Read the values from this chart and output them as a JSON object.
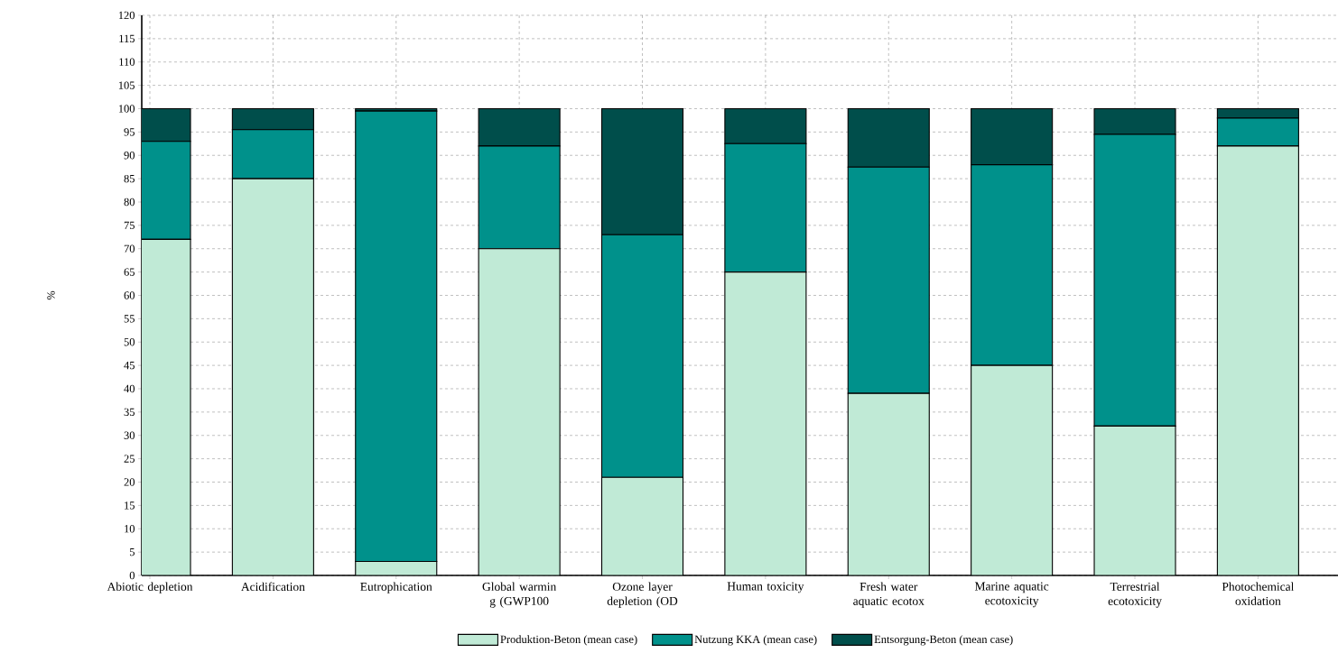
{
  "chart_data": {
    "type": "bar",
    "stacked": true,
    "ylabel": "%",
    "categories": [
      "Abiotic depletion",
      "Acidification",
      "Eutrophication",
      "Global warmin g (GWP100",
      "Ozone layer depletion (OD",
      "Human toxicity",
      "Fresh water aquatic ecotox",
      "Marine aquatic ecotoxicity",
      "Terrestrial ecotoxicity",
      "Photochemical oxidation"
    ],
    "series": [
      {
        "name": "Produktion-Beton (mean case)",
        "color": "#c0ead6",
        "values": [
          72,
          85,
          3,
          70,
          21,
          65,
          39,
          45,
          32,
          92
        ]
      },
      {
        "name": "Nutzung KKA (mean case)",
        "color": "#00918b",
        "values": [
          21,
          10.5,
          96.5,
          22,
          52,
          27.5,
          48.5,
          43,
          62.5,
          6
        ]
      },
      {
        "name": "Entsorgung-Beton (mean case)",
        "color": "#004e4b",
        "values": [
          7,
          4.5,
          0.5,
          8,
          27,
          7.5,
          12.5,
          12,
          5.5,
          2
        ]
      }
    ],
    "ylim": [
      0,
      120
    ],
    "yticks": [
      0,
      5,
      10,
      15,
      20,
      25,
      30,
      35,
      40,
      45,
      50,
      55,
      60,
      65,
      70,
      75,
      80,
      85,
      90,
      95,
      100,
      105,
      110,
      115,
      120
    ],
    "grid": true,
    "legend": "bottom"
  }
}
